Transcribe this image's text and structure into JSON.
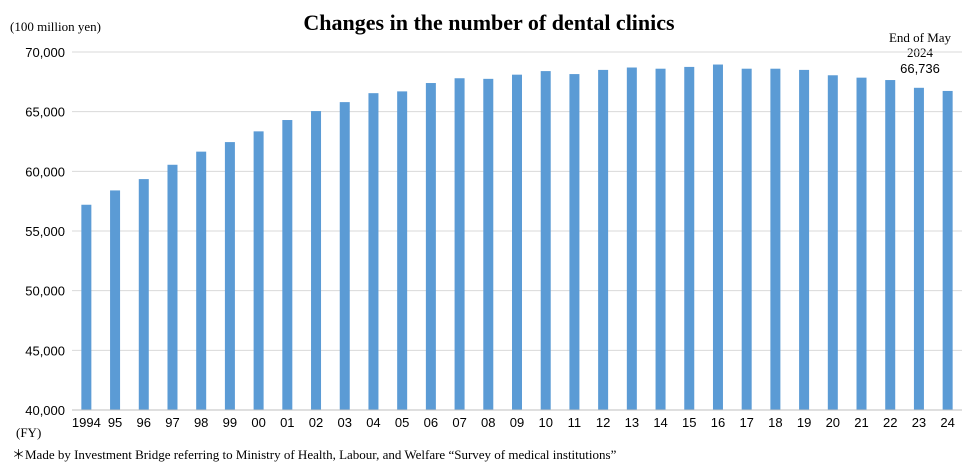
{
  "chart_data": {
    "type": "bar",
    "title": "Changes in the number of dental clinics",
    "ylabel": "(100 million yen)",
    "xlabel": "(FY)",
    "ylim": [
      40000,
      70000
    ],
    "y_ticks": [
      "40,000",
      "45,000",
      "50,000",
      "55,000",
      "60,000",
      "65,000",
      "70,000"
    ],
    "grid": true,
    "bar_color": "#5b9bd5",
    "categories": [
      "1994",
      "95",
      "96",
      "97",
      "98",
      "99",
      "00",
      "01",
      "02",
      "03",
      "04",
      "05",
      "06",
      "07",
      "08",
      "09",
      "10",
      "11",
      "12",
      "13",
      "14",
      "15",
      "16",
      "17",
      "18",
      "19",
      "20",
      "21",
      "22",
      "23",
      "24"
    ],
    "values": [
      57200,
      58400,
      59350,
      60550,
      61650,
      62450,
      63350,
      64300,
      65050,
      65800,
      66550,
      66700,
      67400,
      67800,
      67750,
      68100,
      68400,
      68150,
      68500,
      68700,
      68600,
      68750,
      68950,
      68600,
      68600,
      68500,
      68050,
      67850,
      67650,
      67000,
      66736
    ],
    "annotation": {
      "line1": "End of May",
      "line2": "2024",
      "value_label": "66,736"
    }
  },
  "footnote": "＊Made by Investment Bridge referring to Ministry of Health, Labour, and Welfare “Survey of medical institutions”"
}
